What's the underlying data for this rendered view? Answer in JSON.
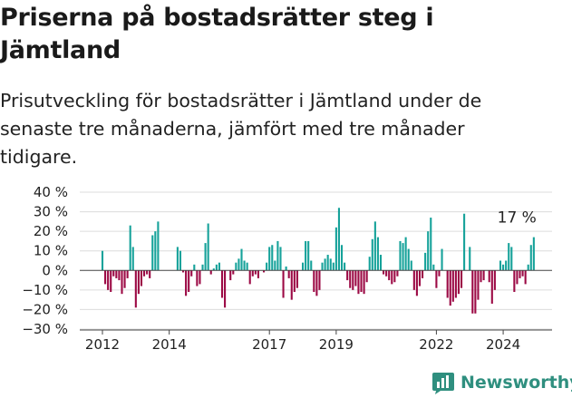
{
  "title": "Priserna på bostadsrätter steg i Jämtland",
  "subtitle": "Prisutveckling för bostadsrätter i Jämtland under de senaste tre månaderna, jämfört med tre månader tidigare.",
  "brand": {
    "name": "Newsworthy",
    "color": "#2f8f7f",
    "icon": "bar-chart-icon"
  },
  "colors": {
    "positive": "#16a29a",
    "negative": "#9c0a45"
  },
  "chart_data": {
    "type": "bar",
    "ylim": [
      -30,
      40
    ],
    "yticks": [
      40,
      30,
      20,
      10,
      0,
      -10,
      -20,
      -30
    ],
    "ytick_labels": [
      "40 %",
      "30 %",
      "20 %",
      "10 %",
      "0 %",
      "−10 %",
      "−20 %",
      "−30 %"
    ],
    "x_start": "2012-01",
    "x_end": "2025-02",
    "xtick_years": [
      2012,
      2014,
      2017,
      2019,
      2022,
      2024
    ],
    "xtick_labels": [
      "2012",
      "2014",
      "2017",
      "2019",
      "2022",
      "2024"
    ],
    "annotation": {
      "text": "17 %",
      "value": 17
    },
    "grid": true,
    "values": [
      10,
      -7,
      -10,
      -11,
      -3,
      -4,
      -5,
      -12,
      -9,
      -4,
      23,
      12,
      -19,
      -12,
      -8,
      -3,
      -2,
      -4,
      18,
      20,
      25,
      0,
      0,
      0,
      0,
      0,
      0,
      12,
      10,
      -1,
      -13,
      -11,
      -3,
      3,
      -8,
      -7,
      3,
      14,
      24,
      -2,
      1,
      3,
      4,
      -14,
      -19,
      0,
      -5,
      -2,
      4,
      6,
      11,
      5,
      4,
      -7,
      -3,
      -2,
      -4,
      0,
      -1,
      4,
      12,
      13,
      5,
      15,
      12,
      -14,
      2,
      -4,
      -15,
      -11,
      -9,
      0,
      4,
      15,
      15,
      5,
      -11,
      -13,
      -10,
      4,
      6,
      8,
      6,
      4,
      22,
      32,
      13,
      4,
      -5,
      -9,
      -10,
      -8,
      -12,
      -11,
      -12,
      -6,
      7,
      16,
      25,
      17,
      8,
      -2,
      -3,
      -5,
      -7,
      -6,
      -3,
      15,
      14,
      17,
      11,
      5,
      -10,
      -13,
      -8,
      -4,
      9,
      20,
      27,
      3,
      -9,
      -3,
      11,
      0,
      -14,
      -18,
      -16,
      -14,
      -12,
      -9,
      29,
      0,
      12,
      -22,
      -22,
      -15,
      -6,
      -5,
      0,
      -6,
      -17,
      -10,
      0,
      5,
      3,
      5,
      14,
      12,
      -11,
      -7,
      -4,
      -3,
      -7,
      3,
      13,
      17
    ]
  }
}
